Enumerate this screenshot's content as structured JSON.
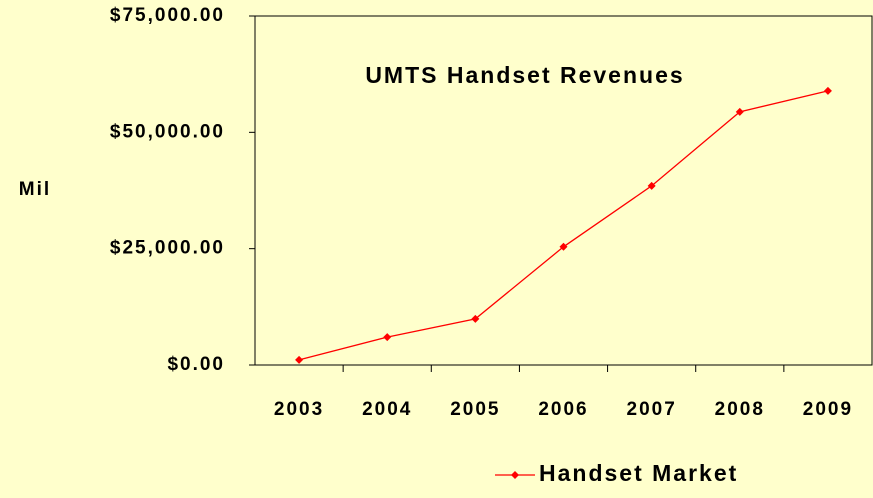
{
  "chart_data": {
    "type": "line",
    "title": "UMTS Handset Revenues",
    "y_label": "Mil",
    "categories": [
      "2003",
      "2004",
      "2005",
      "2006",
      "2007",
      "2008",
      "2009"
    ],
    "series": [
      {
        "name": "Handset Market",
        "color": "#FF0000",
        "values": [
          1100,
          6000,
          9900,
          25400,
          38500,
          54400,
          58900
        ]
      }
    ],
    "ylim": [
      0,
      75000
    ],
    "yticks": [
      {
        "value": 0,
        "label": "$0.00"
      },
      {
        "value": 25000,
        "label": "$25,000.00"
      },
      {
        "value": 50000,
        "label": "$50,000.00"
      },
      {
        "value": 75000,
        "label": "$75,000.00"
      }
    ],
    "grid": false
  }
}
